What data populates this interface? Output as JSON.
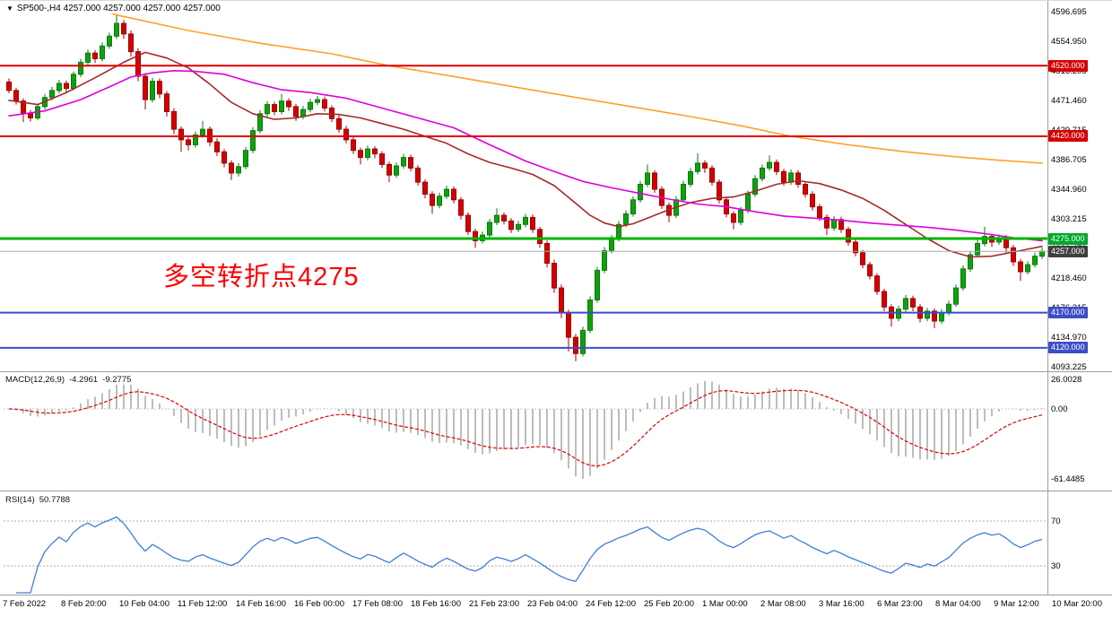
{
  "window": {
    "symbol_timeframe": "SP500-,H4",
    "ohlc_text": "4257.000 4257.000 4257.000 4257.000"
  },
  "icons": {
    "symbol_dropdown": "▼"
  },
  "annotation": {
    "text": "多空转折点4275",
    "color": "#FF0000"
  },
  "y_axis": {
    "labels": [
      "4596.695",
      "4554.950",
      "4513.205",
      "4471.460",
      "4429.715",
      "4386.705",
      "4344.960",
      "4303.215",
      "4261.470",
      "4218.460",
      "4176.215",
      "4134.970",
      "4093.225"
    ]
  },
  "x_axis": {
    "labels": [
      "7 Feb 2022",
      "8 Feb 20:00",
      "10 Feb 04:00",
      "11 Feb 12:00",
      "14 Feb 16:00",
      "16 Feb 00:00",
      "17 Feb 08:00",
      "18 Feb 16:00",
      "21 Feb 23:00",
      "23 Feb 04:00",
      "24 Feb 12:00",
      "25 Feb 20:00",
      "1 Mar 00:00",
      "2 Mar 08:00",
      "3 Mar 16:00",
      "6 Mar 23:00",
      "8 Mar 04:00",
      "9 Mar 12:00",
      "10 Mar 20:00"
    ]
  },
  "levels": [
    {
      "label": "4520.000",
      "price": 4520,
      "color": "#D40000",
      "line_color": "#E00000",
      "width": 2,
      "kind": "resistance-line-4520"
    },
    {
      "label": "4420.000",
      "price": 4420,
      "color": "#D40000",
      "line_color": "#E00000",
      "width": 2,
      "kind": "resistance-line-4420"
    },
    {
      "label": "4275.000",
      "price": 4275,
      "color": "#00A82D",
      "line_color": "#00B400",
      "width": 3,
      "kind": "pivot-line-4275"
    },
    {
      "label": "4257.000",
      "price": 4257,
      "color": "#3F3F3F",
      "line_color": "#ABABAB",
      "width": 1,
      "kind": "current-price-line"
    },
    {
      "label": "4170.000",
      "price": 4170,
      "color": "#3C4EC8",
      "line_color": "#3C4EC8",
      "width": 2,
      "kind": "support-line-4170"
    },
    {
      "label": "4120.000",
      "price": 4120,
      "color": "#3C4EC8",
      "line_color": "#3C4EC8",
      "width": 2,
      "kind": "support-line-4120"
    }
  ],
  "macd": {
    "label": "MACD(12,26,9)",
    "value_main": "-4.2961",
    "value_signal": "-9.2775",
    "scale_labels": [
      "26.0028",
      "0.00",
      "-61.4485"
    ],
    "scale_max": 26.0028,
    "scale_min": -61.4485,
    "fast": 12,
    "slow": 26,
    "signal": 9
  },
  "rsi": {
    "label": "RSI(14)",
    "value": "50.7788",
    "period": 14,
    "level_labels": [
      "70",
      "30"
    ],
    "levels": [
      70,
      30
    ]
  },
  "chart_data": {
    "type": "candlestick",
    "symbol": "SP500",
    "timeframe": "H4",
    "title": "SP500-,H4",
    "ylim": [
      4093.225,
      4596.695
    ],
    "grid": false,
    "colors": {
      "up": "#10A010",
      "up_edge": "#0B7A0B",
      "down": "#D40000",
      "down_edge": "#9C0000",
      "ma_fast": "#A52A2A",
      "ma_mid": "#DD00DD",
      "ma_slow": "#FFA028",
      "macd_hist": "#BDBDBD",
      "macd_signal": "#E00000",
      "rsi": "#3F7FD2",
      "level_dash": "#ADADAD",
      "separator": "#9E9E9E"
    },
    "candles": [
      [
        4497,
        4502,
        4481,
        4485
      ],
      [
        4485,
        4489,
        4465,
        4470
      ],
      [
        4470,
        4474,
        4440,
        4452
      ],
      [
        4452,
        4457,
        4441,
        4446
      ],
      [
        4446,
        4466,
        4443,
        4462
      ],
      [
        4462,
        4480,
        4458,
        4475
      ],
      [
        4475,
        4490,
        4471,
        4485
      ],
      [
        4485,
        4500,
        4481,
        4495
      ],
      [
        4495,
        4499,
        4482,
        4488
      ],
      [
        4488,
        4512,
        4485,
        4508
      ],
      [
        4508,
        4530,
        4504,
        4525
      ],
      [
        4525,
        4543,
        4520,
        4538
      ],
      [
        4538,
        4542,
        4524,
        4530
      ],
      [
        4530,
        4553,
        4526,
        4548
      ],
      [
        4548,
        4567,
        4544,
        4562
      ],
      [
        4562,
        4593,
        4558,
        4580
      ],
      [
        4580,
        4585,
        4558,
        4565
      ],
      [
        4565,
        4570,
        4533,
        4540
      ],
      [
        4540,
        4545,
        4498,
        4505
      ],
      [
        4505,
        4510,
        4458,
        4472
      ],
      [
        4472,
        4503,
        4468,
        4498
      ],
      [
        4498,
        4502,
        4474,
        4480
      ],
      [
        4480,
        4484,
        4448,
        4455
      ],
      [
        4455,
        4460,
        4423,
        4430
      ],
      [
        4430,
        4434,
        4398,
        4415
      ],
      [
        4415,
        4420,
        4400,
        4408
      ],
      [
        4408,
        4427,
        4404,
        4422
      ],
      [
        4422,
        4442,
        4418,
        4430
      ],
      [
        4430,
        4434,
        4406,
        4412
      ],
      [
        4412,
        4417,
        4392,
        4398
      ],
      [
        4398,
        4402,
        4376,
        4382
      ],
      [
        4382,
        4386,
        4358,
        4368
      ],
      [
        4368,
        4382,
        4363,
        4377
      ],
      [
        4377,
        4405,
        4373,
        4400
      ],
      [
        4400,
        4433,
        4396,
        4428
      ],
      [
        4428,
        4457,
        4424,
        4452
      ],
      [
        4452,
        4470,
        4448,
        4465
      ],
      [
        4465,
        4469,
        4450,
        4455
      ],
      [
        4455,
        4480,
        4451,
        4470
      ],
      [
        4470,
        4474,
        4456,
        4462
      ],
      [
        4462,
        4466,
        4442,
        4448
      ],
      [
        4448,
        4463,
        4444,
        4458
      ],
      [
        4458,
        4473,
        4454,
        4468
      ],
      [
        4468,
        4477,
        4464,
        4472
      ],
      [
        4472,
        4476,
        4455,
        4460
      ],
      [
        4460,
        4464,
        4440,
        4445
      ],
      [
        4445,
        4450,
        4425,
        4430
      ],
      [
        4430,
        4435,
        4410,
        4415
      ],
      [
        4415,
        4419,
        4395,
        4400
      ],
      [
        4400,
        4404,
        4380,
        4390
      ],
      [
        4390,
        4407,
        4386,
        4402
      ],
      [
        4402,
        4406,
        4389,
        4395
      ],
      [
        4395,
        4399,
        4375,
        4380
      ],
      [
        4380,
        4384,
        4355,
        4365
      ],
      [
        4365,
        4383,
        4361,
        4378
      ],
      [
        4378,
        4395,
        4374,
        4390
      ],
      [
        4390,
        4394,
        4370,
        4375
      ],
      [
        4375,
        4379,
        4350,
        4355
      ],
      [
        4355,
        4359,
        4332,
        4338
      ],
      [
        4338,
        4342,
        4310,
        4322
      ],
      [
        4322,
        4340,
        4318,
        4335
      ],
      [
        4335,
        4350,
        4331,
        4345
      ],
      [
        4345,
        4349,
        4325,
        4330
      ],
      [
        4330,
        4334,
        4302,
        4308
      ],
      [
        4308,
        4312,
        4280,
        4285
      ],
      [
        4285,
        4289,
        4262,
        4272
      ],
      [
        4272,
        4285,
        4268,
        4280
      ],
      [
        4280,
        4303,
        4276,
        4298
      ],
      [
        4298,
        4318,
        4294,
        4308
      ],
      [
        4308,
        4312,
        4295,
        4300
      ],
      [
        4300,
        4304,
        4283,
        4288
      ],
      [
        4288,
        4300,
        4284,
        4295
      ],
      [
        4295,
        4310,
        4291,
        4305
      ],
      [
        4305,
        4309,
        4283,
        4288
      ],
      [
        4288,
        4292,
        4262,
        4268
      ],
      [
        4268,
        4272,
        4234,
        4240
      ],
      [
        4240,
        4245,
        4198,
        4205
      ],
      [
        4205,
        4210,
        4162,
        4170
      ],
      [
        4170,
        4174,
        4115,
        4135
      ],
      [
        4135,
        4140,
        4101,
        4112
      ],
      [
        4112,
        4150,
        4108,
        4145
      ],
      [
        4145,
        4193,
        4141,
        4188
      ],
      [
        4188,
        4235,
        4184,
        4230
      ],
      [
        4230,
        4263,
        4226,
        4258
      ],
      [
        4258,
        4280,
        4254,
        4275
      ],
      [
        4275,
        4300,
        4271,
        4295
      ],
      [
        4295,
        4315,
        4291,
        4310
      ],
      [
        4310,
        4335,
        4306,
        4330
      ],
      [
        4330,
        4357,
        4326,
        4352
      ],
      [
        4352,
        4380,
        4348,
        4368
      ],
      [
        4368,
        4372,
        4340,
        4345
      ],
      [
        4345,
        4349,
        4317,
        4322
      ],
      [
        4322,
        4326,
        4298,
        4308
      ],
      [
        4308,
        4335,
        4304,
        4330
      ],
      [
        4330,
        4357,
        4326,
        4352
      ],
      [
        4352,
        4375,
        4348,
        4370
      ],
      [
        4370,
        4396,
        4366,
        4382
      ],
      [
        4382,
        4386,
        4368,
        4375
      ],
      [
        4375,
        4379,
        4350,
        4355
      ],
      [
        4355,
        4359,
        4325,
        4330
      ],
      [
        4330,
        4334,
        4305,
        4310
      ],
      [
        4310,
        4314,
        4288,
        4298
      ],
      [
        4298,
        4320,
        4294,
        4315
      ],
      [
        4315,
        4343,
        4311,
        4338
      ],
      [
        4338,
        4365,
        4334,
        4360
      ],
      [
        4360,
        4380,
        4356,
        4375
      ],
      [
        4375,
        4393,
        4371,
        4383
      ],
      [
        4383,
        4387,
        4365,
        4370
      ],
      [
        4370,
        4374,
        4350,
        4355
      ],
      [
        4355,
        4373,
        4351,
        4368
      ],
      [
        4368,
        4372,
        4347,
        4352
      ],
      [
        4352,
        4356,
        4333,
        4338
      ],
      [
        4338,
        4342,
        4315,
        4320
      ],
      [
        4320,
        4324,
        4300,
        4305
      ],
      [
        4305,
        4309,
        4280,
        4290
      ],
      [
        4290,
        4307,
        4286,
        4302
      ],
      [
        4302,
        4306,
        4283,
        4288
      ],
      [
        4288,
        4292,
        4265,
        4270
      ],
      [
        4270,
        4274,
        4250,
        4255
      ],
      [
        4255,
        4259,
        4233,
        4238
      ],
      [
        4238,
        4242,
        4217,
        4222
      ],
      [
        4222,
        4226,
        4195,
        4200
      ],
      [
        4200,
        4204,
        4172,
        4178
      ],
      [
        4178,
        4182,
        4150,
        4162
      ],
      [
        4162,
        4180,
        4158,
        4175
      ],
      [
        4175,
        4195,
        4171,
        4190
      ],
      [
        4190,
        4194,
        4172,
        4178
      ],
      [
        4178,
        4182,
        4156,
        4162
      ],
      [
        4162,
        4177,
        4158,
        4172
      ],
      [
        4172,
        4176,
        4148,
        4158
      ],
      [
        4158,
        4175,
        4154,
        4170
      ],
      [
        4170,
        4187,
        4166,
        4182
      ],
      [
        4182,
        4210,
        4178,
        4205
      ],
      [
        4205,
        4237,
        4201,
        4232
      ],
      [
        4232,
        4257,
        4228,
        4252
      ],
      [
        4252,
        4273,
        4248,
        4268
      ],
      [
        4268,
        4292,
        4264,
        4278
      ],
      [
        4278,
        4282,
        4263,
        4270
      ],
      [
        4270,
        4281,
        4266,
        4276
      ],
      [
        4276,
        4280,
        4255,
        4262
      ],
      [
        4262,
        4266,
        4236,
        4242
      ],
      [
        4242,
        4246,
        4215,
        4228
      ],
      [
        4228,
        4243,
        4224,
        4238
      ],
      [
        4238,
        4255,
        4234,
        4250
      ],
      [
        4250,
        4262,
        4246,
        4257
      ]
    ],
    "moving_averages": [
      {
        "name": "ma-fast-dark-red",
        "color_key": "ma_fast",
        "points": [
          [
            0,
            4471
          ],
          [
            4,
            4465
          ],
          [
            8,
            4482
          ],
          [
            12,
            4503
          ],
          [
            16,
            4525
          ],
          [
            19,
            4539
          ],
          [
            22,
            4531
          ],
          [
            25,
            4517
          ],
          [
            28,
            4494
          ],
          [
            31,
            4468
          ],
          [
            34,
            4452
          ],
          [
            37,
            4444
          ],
          [
            40,
            4446
          ],
          [
            43,
            4452
          ],
          [
            46,
            4451
          ],
          [
            49,
            4446
          ],
          [
            52,
            4438
          ],
          [
            55,
            4430
          ],
          [
            58,
            4420
          ],
          [
            61,
            4410
          ],
          [
            64,
            4395
          ],
          [
            67,
            4383
          ],
          [
            70,
            4375
          ],
          [
            73,
            4366
          ],
          [
            76,
            4350
          ],
          [
            79,
            4325
          ],
          [
            81,
            4308
          ],
          [
            83,
            4297
          ],
          [
            85,
            4292
          ],
          [
            87,
            4296
          ],
          [
            89,
            4304
          ],
          [
            92,
            4316
          ],
          [
            95,
            4326
          ],
          [
            98,
            4332
          ],
          [
            101,
            4334
          ],
          [
            104,
            4342
          ],
          [
            107,
            4352
          ],
          [
            110,
            4357
          ],
          [
            113,
            4353
          ],
          [
            116,
            4344
          ],
          [
            119,
            4332
          ],
          [
            122,
            4315
          ],
          [
            125,
            4295
          ],
          [
            128,
            4275
          ],
          [
            131,
            4258
          ],
          [
            134,
            4249
          ],
          [
            137,
            4250
          ],
          [
            140,
            4256
          ],
          [
            143,
            4262
          ],
          [
            144,
            4264
          ]
        ]
      },
      {
        "name": "ma-mid-magenta",
        "color_key": "ma_mid",
        "points": [
          [
            0,
            4449
          ],
          [
            5,
            4456
          ],
          [
            10,
            4472
          ],
          [
            14,
            4490
          ],
          [
            17,
            4504
          ],
          [
            20,
            4510
          ],
          [
            23,
            4513
          ],
          [
            26,
            4512
          ],
          [
            30,
            4508
          ],
          [
            34,
            4496
          ],
          [
            38,
            4486
          ],
          [
            42,
            4482
          ],
          [
            47,
            4474
          ],
          [
            52,
            4460
          ],
          [
            57,
            4446
          ],
          [
            62,
            4432
          ],
          [
            67,
            4408
          ],
          [
            72,
            4385
          ],
          [
            76,
            4370
          ],
          [
            80,
            4356
          ],
          [
            84,
            4347
          ],
          [
            88,
            4339
          ],
          [
            92,
            4331
          ],
          [
            96,
            4324
          ],
          [
            100,
            4320
          ],
          [
            104,
            4313
          ],
          [
            108,
            4307
          ],
          [
            112,
            4304
          ],
          [
            116,
            4301
          ],
          [
            120,
            4297
          ],
          [
            124,
            4294
          ],
          [
            128,
            4291
          ],
          [
            132,
            4287
          ],
          [
            136,
            4282
          ],
          [
            140,
            4276
          ],
          [
            144,
            4272
          ]
        ]
      },
      {
        "name": "ma-slow-orange",
        "color_key": "ma_slow",
        "points": [
          [
            13,
            4599
          ],
          [
            15,
            4592
          ],
          [
            25,
            4570
          ],
          [
            35,
            4552
          ],
          [
            45,
            4537
          ],
          [
            53,
            4520
          ],
          [
            63,
            4503
          ],
          [
            75,
            4482
          ],
          [
            85,
            4465
          ],
          [
            95,
            4448
          ],
          [
            102,
            4435
          ],
          [
            109,
            4420
          ],
          [
            117,
            4408
          ],
          [
            125,
            4398
          ],
          [
            132,
            4391
          ],
          [
            138,
            4386
          ],
          [
            144,
            4382
          ]
        ]
      }
    ]
  }
}
